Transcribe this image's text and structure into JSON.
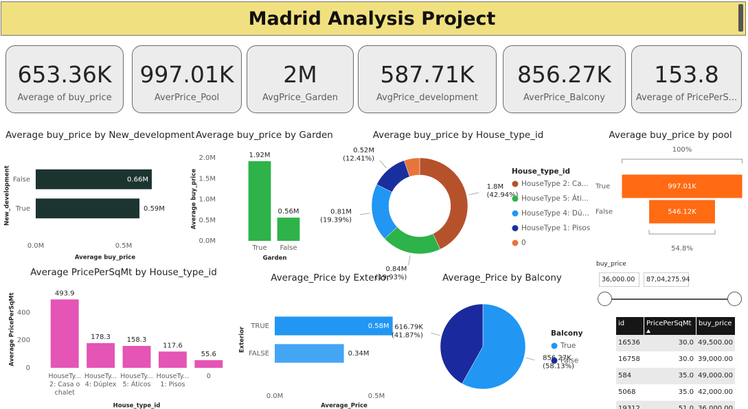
{
  "header": {
    "title": "Madrid Analysis Project"
  },
  "cards": [
    {
      "value": "653.36K",
      "label": "Average of buy_price"
    },
    {
      "value": "997.01K",
      "label": "AverPrice_Pool"
    },
    {
      "value": "2M",
      "label": "AvgPrice_Garden"
    },
    {
      "value": "587.71K",
      "label": "AvgPrice_development"
    },
    {
      "value": "856.27K",
      "label": "AverPrice_Balcony"
    },
    {
      "value": "153.8",
      "label": "Average of PricePerS..."
    }
  ],
  "chart_data": [
    {
      "type": "bar",
      "orientation": "horizontal",
      "title": "Average buy_price by New_development",
      "categories": [
        "False",
        "True"
      ],
      "values": [
        660000,
        590000
      ],
      "value_labels": [
        "0.66M",
        "0.59M"
      ],
      "color": "#1c3430",
      "xlim": [
        0,
        800000
      ],
      "xticks": [
        {
          "value": 0,
          "label": "0.0M"
        },
        {
          "value": 500000,
          "label": "0.5M"
        }
      ],
      "xlabel": "Average buy_price",
      "ylabel": "New_development"
    },
    {
      "type": "bar",
      "orientation": "vertical",
      "title": "Average buy_price by Garden",
      "categories": [
        "True",
        "False"
      ],
      "values": [
        1920000,
        560000
      ],
      "value_labels": [
        "1.92M",
        "0.56M"
      ],
      "color": "#2db34a",
      "ylim": [
        0,
        2000000
      ],
      "yticks": [
        {
          "value": 0,
          "label": "0.0M"
        },
        {
          "value": 500000,
          "label": "0.5M"
        },
        {
          "value": 1000000,
          "label": "1.0M"
        },
        {
          "value": 1500000,
          "label": "1.5M"
        },
        {
          "value": 2000000,
          "label": "2.0M"
        }
      ],
      "xlabel": "Garden",
      "ylabel": "Average buy_price"
    },
    {
      "type": "donut",
      "title": "Average buy_price by House_type_id",
      "legend_title": "House_type_id",
      "categories": [
        "HouseType 2: Ca...",
        "HouseType 5: Áti...",
        "HouseType 4: Dú...",
        "HouseType 1: Pisos",
        "0"
      ],
      "values": [
        1800000,
        840000,
        810000,
        520000,
        220000
      ],
      "value_labels": [
        "1.8M",
        "0.84M",
        "0.81M",
        "0.52M",
        null
      ],
      "percent_labels": [
        "(42.94%)",
        "(19.93%)",
        "(19.39%)",
        "(12.41%)",
        null
      ],
      "colors": [
        "#b5522b",
        "#2db34a",
        "#2196f3",
        "#1a2f9e",
        "#e8743b"
      ]
    },
    {
      "type": "funnel",
      "title": "Average buy_price by pool",
      "categories": [
        "True",
        "False"
      ],
      "values": [
        997010,
        546120
      ],
      "value_labels": [
        "997.01K",
        "546.12K"
      ],
      "percent_labels": [
        "100%",
        "54.8%"
      ],
      "color": "#ff6a13"
    },
    {
      "type": "bar",
      "orientation": "vertical",
      "title": "Average PricePerSqMt by House_type_id",
      "categories": [
        "HouseTy... 2: Casa o chalet",
        "HouseTy... 4: Dúplex",
        "HouseTy... 5: Áticos",
        "HouseTy... 1: Pisos",
        "0"
      ],
      "values": [
        493.9,
        178.3,
        158.3,
        117.6,
        55.6
      ],
      "color": "#e455b5",
      "ylim": [
        0,
        550
      ],
      "yticks": [
        0,
        200,
        400
      ],
      "xlabel": "House_type_id",
      "ylabel": "Average PricePerSqMt"
    },
    {
      "type": "bar",
      "orientation": "horizontal",
      "title": "Average_Price by Exterior",
      "categories": [
        "TRUE",
        "FALSE"
      ],
      "values": [
        580000,
        340000
      ],
      "value_labels": [
        "0.58M",
        "0.34M"
      ],
      "colors": [
        "#2196f3",
        "#45a5f5"
      ],
      "xlim": [
        0,
        600000
      ],
      "xticks": [
        {
          "value": 0,
          "label": "0.0M"
        },
        {
          "value": 500000,
          "label": "0.5M"
        }
      ],
      "xlabel": "Average_Price",
      "ylabel": "Exterior"
    },
    {
      "type": "pie",
      "title": "Average_Price by Balcony",
      "legend_title": "Balcony",
      "categories": [
        "True",
        "False"
      ],
      "values": [
        856270,
        616790
      ],
      "value_labels": [
        "856.27K",
        "616.79K"
      ],
      "percent_labels": [
        "(58.13%)",
        "(41.87%)"
      ],
      "colors": [
        "#2196f3",
        "#1a2a9e"
      ]
    }
  ],
  "slicer": {
    "title": "buy_price",
    "min": "36,000.00",
    "max": "87,04,275.94"
  },
  "table": {
    "columns": [
      "id",
      "PricePerSqMt",
      "buy_price"
    ],
    "rows": [
      [
        "16536",
        "30.0",
        "49,500.00"
      ],
      [
        "16758",
        "30.0",
        "39,000.00"
      ],
      [
        "584",
        "35.0",
        "49,000.00"
      ],
      [
        "5068",
        "35.0",
        "42,000.00"
      ],
      [
        "19312",
        "51.0",
        "36,000.00"
      ]
    ]
  }
}
